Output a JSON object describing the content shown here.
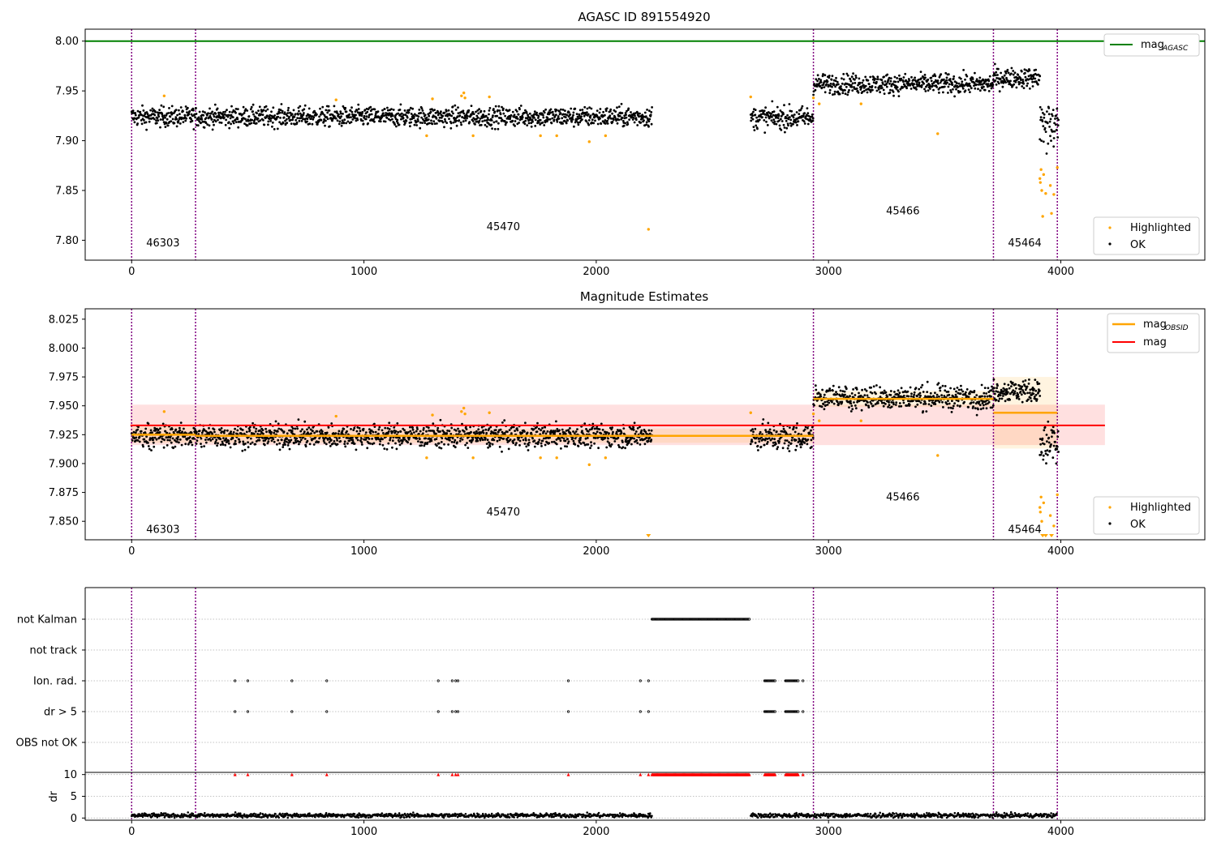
{
  "chart_data": [
    {
      "type": "scatter",
      "title": "AGASC ID 891554920",
      "xlim": [
        -200,
        4620
      ],
      "ylim": [
        7.78,
        8.012
      ],
      "xticks": [
        "0",
        "1000",
        "2000",
        "3000",
        "4000"
      ],
      "xtick_values": [
        0,
        1000,
        2000,
        3000,
        4000
      ],
      "yticks": [
        "7.80",
        "7.85",
        "7.90",
        "7.95",
        "8.00"
      ],
      "ytick_values": [
        7.8,
        7.85,
        7.9,
        7.95,
        8.0
      ],
      "grid": false,
      "obsid_boundaries": [
        0,
        275,
        2935,
        3710,
        3985
      ],
      "obsid_labels": [
        {
          "text": "46303",
          "x": 135,
          "y": 7.794
        },
        {
          "text": "45470",
          "x": 1600,
          "y": 7.81
        },
        {
          "text": "45466",
          "x": 3320,
          "y": 7.826
        },
        {
          "text": "45464",
          "x": 3845,
          "y": 7.794
        }
      ],
      "lines": [
        {
          "name": "mag",
          "subscript": "AGASC",
          "y": 8.0,
          "color": "#008000"
        }
      ],
      "segments": [
        {
          "x0": 0,
          "x1": 2240,
          "mean": 7.924,
          "sd": 0.007
        },
        {
          "x0": 2665,
          "x1": 2935,
          "mean": 7.923,
          "sd": 0.008
        },
        {
          "x0": 2935,
          "x1": 3710,
          "mean": 7.957,
          "sd": 0.007
        },
        {
          "x0": 3710,
          "x1": 3910,
          "mean": 7.963,
          "sd": 0.007
        }
      ],
      "highlighted": [
        [
          140,
          7.945
        ],
        [
          880,
          7.941
        ],
        [
          1270,
          7.905
        ],
        [
          1295,
          7.942
        ],
        [
          1420,
          7.945
        ],
        [
          1430,
          7.948
        ],
        [
          1435,
          7.943
        ],
        [
          1470,
          7.905
        ],
        [
          1540,
          7.944
        ],
        [
          1760,
          7.905
        ],
        [
          1830,
          7.905
        ],
        [
          1970,
          7.899
        ],
        [
          2040,
          7.905
        ],
        [
          2225,
          7.811
        ],
        [
          2665,
          7.944
        ],
        [
          2935,
          7.943
        ],
        [
          2960,
          7.937
        ],
        [
          3140,
          7.937
        ],
        [
          3470,
          7.907
        ],
        [
          3910,
          7.862
        ],
        [
          3912,
          7.858
        ],
        [
          3915,
          7.871
        ],
        [
          3918,
          7.85
        ],
        [
          3922,
          7.824
        ],
        [
          3926,
          7.866
        ],
        [
          3935,
          7.847
        ],
        [
          3955,
          7.855
        ],
        [
          3960,
          7.827
        ],
        [
          3970,
          7.846
        ],
        [
          3985,
          7.873
        ]
      ],
      "legend": [
        "Highlighted",
        "OK"
      ],
      "legend_placement": "bottom-right",
      "legend_top": "top-right",
      "colors": {
        "ok": "#000000",
        "highlighted": "#ffa500",
        "agasc": "#008000",
        "boundary": "#800080"
      }
    },
    {
      "type": "scatter",
      "title": "Magnitude Estimates",
      "xlim": [
        -200,
        4620
      ],
      "ylim": [
        7.834,
        8.034
      ],
      "xticks": [
        "0",
        "1000",
        "2000",
        "3000",
        "4000"
      ],
      "xtick_values": [
        0,
        1000,
        2000,
        3000,
        4000
      ],
      "yticks": [
        "7.850",
        "7.875",
        "7.900",
        "7.925",
        "7.950",
        "7.975",
        "8.000",
        "8.025"
      ],
      "ytick_values": [
        7.85,
        7.875,
        7.9,
        7.925,
        7.95,
        7.975,
        8.0,
        8.025
      ],
      "grid": false,
      "obsid_boundaries": [
        0,
        275,
        2935,
        3710,
        3985
      ],
      "obsid_labels": [
        {
          "text": "46303",
          "x": 135,
          "y": 7.84
        },
        {
          "text": "45470",
          "x": 1600,
          "y": 7.855
        },
        {
          "text": "45466",
          "x": 3320,
          "y": 7.868
        },
        {
          "text": "45464",
          "x": 3845,
          "y": 7.84
        }
      ],
      "mag": {
        "name": "mag",
        "value": 7.933,
        "band": [
          7.916,
          7.951
        ],
        "x0": -5,
        "x1": 4190,
        "color": "#ff0000"
      },
      "mag_obsid": {
        "name": "mag",
        "subscript": "OBSID",
        "color": "#ffa500",
        "steps": [
          {
            "x0": 0,
            "x1": 275,
            "value": 7.925,
            "band": [
              7.918,
              7.932
            ]
          },
          {
            "x0": 275,
            "x1": 2935,
            "value": 7.924,
            "band": [
              7.918,
              7.93
            ]
          },
          {
            "x0": 2935,
            "x1": 3710,
            "value": 7.956,
            "band": [
              7.949,
              7.963
            ]
          },
          {
            "x0": 3710,
            "x1": 3985,
            "value": 7.944,
            "band": [
              7.913,
              7.975
            ]
          }
        ]
      },
      "segments": [
        {
          "x0": 0,
          "x1": 2240,
          "mean": 7.924,
          "sd": 0.007
        },
        {
          "x0": 2665,
          "x1": 2935,
          "mean": 7.923,
          "sd": 0.008
        },
        {
          "x0": 2935,
          "x1": 3710,
          "mean": 7.957,
          "sd": 0.007
        },
        {
          "x0": 3710,
          "x1": 3910,
          "mean": 7.963,
          "sd": 0.007
        }
      ],
      "highlighted": [
        [
          140,
          7.945
        ],
        [
          880,
          7.941
        ],
        [
          1270,
          7.905
        ],
        [
          1295,
          7.942
        ],
        [
          1420,
          7.945
        ],
        [
          1430,
          7.948
        ],
        [
          1435,
          7.943
        ],
        [
          1470,
          7.905
        ],
        [
          1540,
          7.944
        ],
        [
          1760,
          7.905
        ],
        [
          1830,
          7.905
        ],
        [
          1970,
          7.899
        ],
        [
          2040,
          7.905
        ],
        [
          2665,
          7.944
        ],
        [
          2935,
          7.943
        ],
        [
          2960,
          7.937
        ],
        [
          3140,
          7.937
        ],
        [
          3470,
          7.907
        ],
        [
          3910,
          7.862
        ],
        [
          3912,
          7.858
        ],
        [
          3915,
          7.871
        ],
        [
          3918,
          7.85
        ],
        [
          3926,
          7.866
        ],
        [
          3955,
          7.855
        ],
        [
          3970,
          7.846
        ],
        [
          3985,
          7.873
        ]
      ],
      "off_scale": [
        2225,
        3922,
        3935,
        3960
      ],
      "legend": [
        "Highlighted",
        "OK"
      ],
      "legend_placement": "bottom-right",
      "legend_top": "top-right"
    },
    {
      "type": "scatter",
      "xlim": [
        -200,
        4620
      ],
      "xticks": [
        "0",
        "1000",
        "2000",
        "3000",
        "4000"
      ],
      "xtick_values": [
        0,
        1000,
        2000,
        3000,
        4000
      ],
      "categories": [
        "not Kalman",
        "not track",
        "Ion. rad.",
        "dr > 5",
        "OBS not OK"
      ],
      "obsid_boundaries": [
        0,
        275,
        2935,
        3710,
        3985
      ],
      "flags": {
        "not Kalman": {
          "ranges": [
            [
              2240,
              2660
            ]
          ],
          "points": []
        },
        "not track": {
          "ranges": [],
          "points": []
        },
        "Ion. rad.": {
          "ranges": [
            [
              2725,
              2770
            ],
            [
              2815,
              2870
            ]
          ],
          "points": [
            445,
            500,
            690,
            840,
            1320,
            1380,
            1395,
            1405,
            1880,
            2190,
            2225,
            2890
          ]
        },
        "dr > 5": {
          "ranges": [
            [
              2725,
              2770
            ],
            [
              2815,
              2870
            ]
          ],
          "points": [
            445,
            500,
            690,
            840,
            1320,
            1380,
            1395,
            1405,
            1880,
            2190,
            2225,
            2890
          ]
        },
        "OBS not OK": {
          "ranges": [],
          "points": []
        }
      },
      "dr": {
        "ylabel": "dr",
        "ylim": [
          -0.5,
          10.5
        ],
        "yticks": [
          "0",
          "5",
          "10"
        ],
        "ytick_values": [
          0,
          5,
          10
        ],
        "segments": [
          [
            0,
            2240
          ],
          [
            2665,
            3985
          ]
        ],
        "typical": 0.6,
        "clipped_at": 10,
        "clipped_points": [
          445,
          500,
          690,
          840,
          1320,
          1380,
          1395,
          1405,
          1880,
          2190,
          2225,
          2890
        ],
        "clipped_ranges": [
          [
            2240,
            2660
          ],
          [
            2725,
            2770
          ],
          [
            2815,
            2870
          ]
        ],
        "clipped_color": "#ff0000"
      }
    }
  ]
}
